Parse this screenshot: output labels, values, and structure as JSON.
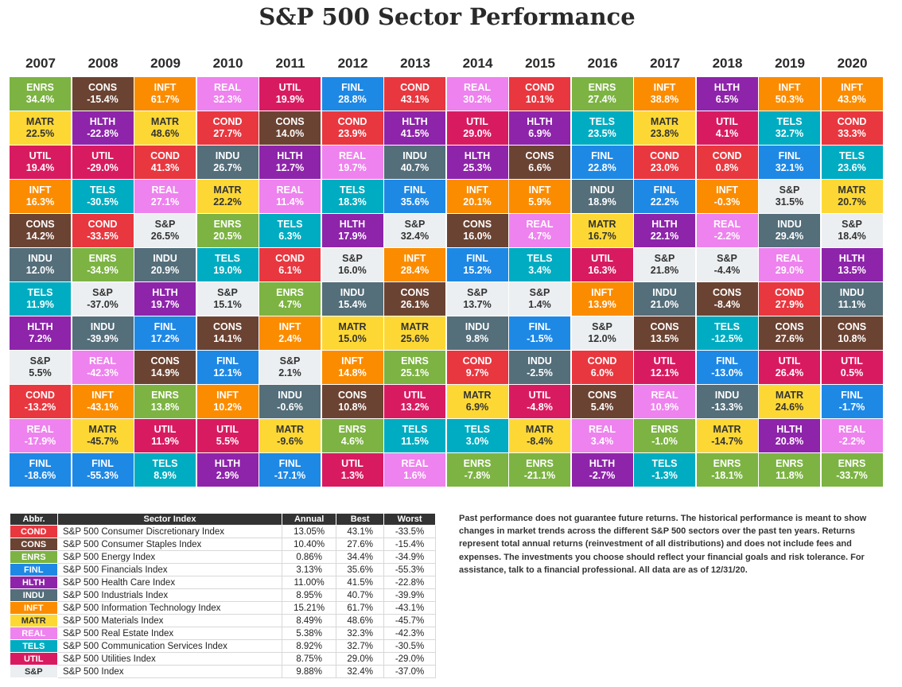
{
  "chart_data": {
    "type": "table",
    "title": "S&P 500 Sector Performance",
    "years": [
      "2007",
      "2008",
      "2009",
      "2010",
      "2011",
      "2012",
      "2013",
      "2014",
      "2015",
      "2016",
      "2017",
      "2018",
      "2019",
      "2020"
    ],
    "columns": [
      [
        [
          "ENRS",
          "34.4%"
        ],
        [
          "MATR",
          "22.5%"
        ],
        [
          "UTIL",
          "19.4%"
        ],
        [
          "INFT",
          "16.3%"
        ],
        [
          "CONS",
          "14.2%"
        ],
        [
          "INDU",
          "12.0%"
        ],
        [
          "TELS",
          "11.9%"
        ],
        [
          "HLTH",
          "7.2%"
        ],
        [
          "S&P",
          "5.5%"
        ],
        [
          "COND",
          "-13.2%"
        ],
        [
          "REAL",
          "-17.9%"
        ],
        [
          "FINL",
          "-18.6%"
        ]
      ],
      [
        [
          "CONS",
          "-15.4%"
        ],
        [
          "HLTH",
          "-22.8%"
        ],
        [
          "UTIL",
          "-29.0%"
        ],
        [
          "TELS",
          "-30.5%"
        ],
        [
          "COND",
          "-33.5%"
        ],
        [
          "ENRS",
          "-34.9%"
        ],
        [
          "S&P",
          "-37.0%"
        ],
        [
          "INDU",
          "-39.9%"
        ],
        [
          "REAL",
          "-42.3%"
        ],
        [
          "INFT",
          "-43.1%"
        ],
        [
          "MATR",
          "-45.7%"
        ],
        [
          "FINL",
          "-55.3%"
        ]
      ],
      [
        [
          "INFT",
          "61.7%"
        ],
        [
          "MATR",
          "48.6%"
        ],
        [
          "COND",
          "41.3%"
        ],
        [
          "REAL",
          "27.1%"
        ],
        [
          "S&P",
          "26.5%"
        ],
        [
          "INDU",
          "20.9%"
        ],
        [
          "HLTH",
          "19.7%"
        ],
        [
          "FINL",
          "17.2%"
        ],
        [
          "CONS",
          "14.9%"
        ],
        [
          "ENRS",
          "13.8%"
        ],
        [
          "UTIL",
          "11.9%"
        ],
        [
          "TELS",
          "8.9%"
        ]
      ],
      [
        [
          "REAL",
          "32.3%"
        ],
        [
          "COND",
          "27.7%"
        ],
        [
          "INDU",
          "26.7%"
        ],
        [
          "MATR",
          "22.2%"
        ],
        [
          "ENRS",
          "20.5%"
        ],
        [
          "TELS",
          "19.0%"
        ],
        [
          "S&P",
          "15.1%"
        ],
        [
          "CONS",
          "14.1%"
        ],
        [
          "FINL",
          "12.1%"
        ],
        [
          "INFT",
          "10.2%"
        ],
        [
          "UTIL",
          "5.5%"
        ],
        [
          "HLTH",
          "2.9%"
        ]
      ],
      [
        [
          "UTIL",
          "19.9%"
        ],
        [
          "CONS",
          "14.0%"
        ],
        [
          "HLTH",
          "12.7%"
        ],
        [
          "REAL",
          "11.4%"
        ],
        [
          "TELS",
          "6.3%"
        ],
        [
          "COND",
          "6.1%"
        ],
        [
          "ENRS",
          "4.7%"
        ],
        [
          "INFT",
          "2.4%"
        ],
        [
          "S&P",
          "2.1%"
        ],
        [
          "INDU",
          "-0.6%"
        ],
        [
          "MATR",
          "-9.6%"
        ],
        [
          "FINL",
          "-17.1%"
        ]
      ],
      [
        [
          "FINL",
          "28.8%"
        ],
        [
          "COND",
          "23.9%"
        ],
        [
          "REAL",
          "19.7%"
        ],
        [
          "TELS",
          "18.3%"
        ],
        [
          "HLTH",
          "17.9%"
        ],
        [
          "S&P",
          "16.0%"
        ],
        [
          "INDU",
          "15.4%"
        ],
        [
          "MATR",
          "15.0%"
        ],
        [
          "INFT",
          "14.8%"
        ],
        [
          "CONS",
          "10.8%"
        ],
        [
          "ENRS",
          "4.6%"
        ],
        [
          "UTIL",
          "1.3%"
        ]
      ],
      [
        [
          "COND",
          "43.1%"
        ],
        [
          "HLTH",
          "41.5%"
        ],
        [
          "INDU",
          "40.7%"
        ],
        [
          "FINL",
          "35.6%"
        ],
        [
          "S&P",
          "32.4%"
        ],
        [
          "INFT",
          "28.4%"
        ],
        [
          "CONS",
          "26.1%"
        ],
        [
          "MATR",
          "25.6%"
        ],
        [
          "ENRS",
          "25.1%"
        ],
        [
          "UTIL",
          "13.2%"
        ],
        [
          "TELS",
          "11.5%"
        ],
        [
          "REAL",
          "1.6%"
        ]
      ],
      [
        [
          "REAL",
          "30.2%"
        ],
        [
          "UTIL",
          "29.0%"
        ],
        [
          "HLTH",
          "25.3%"
        ],
        [
          "INFT",
          "20.1%"
        ],
        [
          "CONS",
          "16.0%"
        ],
        [
          "FINL",
          "15.2%"
        ],
        [
          "S&P",
          "13.7%"
        ],
        [
          "INDU",
          "9.8%"
        ],
        [
          "COND",
          "9.7%"
        ],
        [
          "MATR",
          "6.9%"
        ],
        [
          "TELS",
          "3.0%"
        ],
        [
          "ENRS",
          "-7.8%"
        ]
      ],
      [
        [
          "COND",
          "10.1%"
        ],
        [
          "HLTH",
          "6.9%"
        ],
        [
          "CONS",
          "6.6%"
        ],
        [
          "INFT",
          "5.9%"
        ],
        [
          "REAL",
          "4.7%"
        ],
        [
          "TELS",
          "3.4%"
        ],
        [
          "S&P",
          "1.4%"
        ],
        [
          "FINL",
          "-1.5%"
        ],
        [
          "INDU",
          "-2.5%"
        ],
        [
          "UTIL",
          "-4.8%"
        ],
        [
          "MATR",
          "-8.4%"
        ],
        [
          "ENRS",
          "-21.1%"
        ]
      ],
      [
        [
          "ENRS",
          "27.4%"
        ],
        [
          "TELS",
          "23.5%"
        ],
        [
          "FINL",
          "22.8%"
        ],
        [
          "INDU",
          "18.9%"
        ],
        [
          "MATR",
          "16.7%"
        ],
        [
          "UTIL",
          "16.3%"
        ],
        [
          "INFT",
          "13.9%"
        ],
        [
          "S&P",
          "12.0%"
        ],
        [
          "COND",
          "6.0%"
        ],
        [
          "CONS",
          "5.4%"
        ],
        [
          "REAL",
          "3.4%"
        ],
        [
          "HLTH",
          "-2.7%"
        ]
      ],
      [
        [
          "INFT",
          "38.8%"
        ],
        [
          "MATR",
          "23.8%"
        ],
        [
          "COND",
          "23.0%"
        ],
        [
          "FINL",
          "22.2%"
        ],
        [
          "HLTH",
          "22.1%"
        ],
        [
          "S&P",
          "21.8%"
        ],
        [
          "INDU",
          "21.0%"
        ],
        [
          "CONS",
          "13.5%"
        ],
        [
          "UTIL",
          "12.1%"
        ],
        [
          "REAL",
          "10.9%"
        ],
        [
          "ENRS",
          "-1.0%"
        ],
        [
          "TELS",
          "-1.3%"
        ]
      ],
      [
        [
          "HLTH",
          "6.5%"
        ],
        [
          "UTIL",
          "4.1%"
        ],
        [
          "COND",
          "0.8%"
        ],
        [
          "INFT",
          "-0.3%"
        ],
        [
          "REAL",
          "-2.2%"
        ],
        [
          "S&P",
          "-4.4%"
        ],
        [
          "CONS",
          "-8.4%"
        ],
        [
          "TELS",
          "-12.5%"
        ],
        [
          "FINL",
          "-13.0%"
        ],
        [
          "INDU",
          "-13.3%"
        ],
        [
          "MATR",
          "-14.7%"
        ],
        [
          "ENRS",
          "-18.1%"
        ]
      ],
      [
        [
          "INFT",
          "50.3%"
        ],
        [
          "TELS",
          "32.7%"
        ],
        [
          "FINL",
          "32.1%"
        ],
        [
          "S&P",
          "31.5%"
        ],
        [
          "INDU",
          "29.4%"
        ],
        [
          "REAL",
          "29.0%"
        ],
        [
          "COND",
          "27.9%"
        ],
        [
          "CONS",
          "27.6%"
        ],
        [
          "UTIL",
          "26.4%"
        ],
        [
          "MATR",
          "24.6%"
        ],
        [
          "HLTH",
          "20.8%"
        ],
        [
          "ENRS",
          "11.8%"
        ]
      ],
      [
        [
          "INFT",
          "43.9%"
        ],
        [
          "COND",
          "33.3%"
        ],
        [
          "TELS",
          "23.6%"
        ],
        [
          "MATR",
          "20.7%"
        ],
        [
          "S&P",
          "18.4%"
        ],
        [
          "HLTH",
          "13.5%"
        ],
        [
          "INDU",
          "11.1%"
        ],
        [
          "CONS",
          "10.8%"
        ],
        [
          "UTIL",
          "0.5%"
        ],
        [
          "FINL",
          "-1.7%"
        ],
        [
          "REAL",
          "-2.2%"
        ],
        [
          "ENRS",
          "-33.7%"
        ]
      ]
    ],
    "sector_colors": {
      "COND": "#e8373f",
      "CONS": "#6b4333",
      "ENRS": "#7cb342",
      "FINL": "#1e88e5",
      "HLTH": "#8e24aa",
      "INDU": "#546e7a",
      "INFT": "#fb8c00",
      "MATR": "#fdd835",
      "REAL": "#ee82ee",
      "TELS": "#00acc1",
      "UTIL": "#d81b60",
      "S&P": "#eceff1"
    }
  },
  "legend": {
    "headers": {
      "abbr": "Abbr.",
      "name": "Sector Index",
      "annual": "Annual",
      "best": "Best",
      "worst": "Worst"
    },
    "rows": [
      {
        "abbr": "COND",
        "name": "S&P 500 Consumer Discretionary Index",
        "annual": "13.05%",
        "best": "43.1%",
        "worst": "-33.5%"
      },
      {
        "abbr": "CONS",
        "name": "S&P 500 Consumer Staples Index",
        "annual": "10.40%",
        "best": "27.6%",
        "worst": "-15.4%"
      },
      {
        "abbr": "ENRS",
        "name": "S&P 500 Energy Index",
        "annual": "0.86%",
        "best": "34.4%",
        "worst": "-34.9%"
      },
      {
        "abbr": "FINL",
        "name": "S&P 500 Financials Index",
        "annual": "3.13%",
        "best": "35.6%",
        "worst": "-55.3%"
      },
      {
        "abbr": "HLTH",
        "name": "S&P 500 Health Care Index",
        "annual": "11.00%",
        "best": "41.5%",
        "worst": "-22.8%"
      },
      {
        "abbr": "INDU",
        "name": "S&P 500 Industrials Index",
        "annual": "8.95%",
        "best": "40.7%",
        "worst": "-39.9%"
      },
      {
        "abbr": "INFT",
        "name": "S&P 500 Information Technology Index",
        "annual": "15.21%",
        "best": "61.7%",
        "worst": "-43.1%"
      },
      {
        "abbr": "MATR",
        "name": "S&P 500 Materials Index",
        "annual": "8.49%",
        "best": "48.6%",
        "worst": "-45.7%"
      },
      {
        "abbr": "REAL",
        "name": "S&P 500 Real Estate Index",
        "annual": "5.38%",
        "best": "32.3%",
        "worst": "-42.3%"
      },
      {
        "abbr": "TELS",
        "name": "S&P 500 Communication Services Index",
        "annual": "8.92%",
        "best": "32.7%",
        "worst": "-30.5%"
      },
      {
        "abbr": "UTIL",
        "name": "S&P 500 Utilities Index",
        "annual": "8.75%",
        "best": "29.0%",
        "worst": "-29.0%"
      },
      {
        "abbr": "S&P",
        "name": "S&P 500 Index",
        "annual": "9.88%",
        "best": "32.4%",
        "worst": "-37.0%"
      }
    ]
  },
  "note": "Past performance does not guarantee future returns. The historical performance is meant to show changes in market trends across the different S&P 500 sectors over the past ten years. Returns represent total annual returns (reinvestment of all distributions) and does not include fees and expenses. The investments you choose should reflect your financial goals and risk tolerance. For assistance, talk to a financial professional. All data are as of 12/31/20."
}
